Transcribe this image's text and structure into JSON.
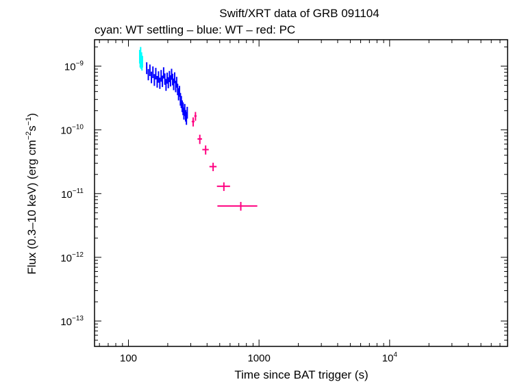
{
  "chart_data": {
    "type": "scatter",
    "title": "Swift/XRT data of GRB 091104",
    "subtitle": "cyan: WT settling – blue: WT – red: PC",
    "xlabel": "Time since BAT trigger (s)",
    "ylabel_parts": [
      "Flux (0.3–10 keV) (erg cm",
      "−2",
      "s",
      "−1",
      ")"
    ],
    "x_scale": "log",
    "y_scale": "log",
    "xlim": [
      55,
      80000
    ],
    "ylim": [
      4e-14,
      2.6e-09
    ],
    "x_ticks": [
      {
        "value": 100,
        "base": "100",
        "exp": ""
      },
      {
        "value": 1000,
        "base": "1000",
        "exp": ""
      },
      {
        "value": 10000,
        "base": "10",
        "exp": "4"
      }
    ],
    "y_ticks": [
      {
        "value": 1e-09,
        "base": "10",
        "exp": "−9"
      },
      {
        "value": 1e-10,
        "base": "10",
        "exp": "−10"
      },
      {
        "value": 1e-11,
        "base": "10",
        "exp": "−11"
      },
      {
        "value": 1e-12,
        "base": "10",
        "exp": "−12"
      },
      {
        "value": 1e-13,
        "base": "10",
        "exp": "−13"
      }
    ],
    "grid": false,
    "series": [
      {
        "color": "#00ffff",
        "points": [
          [
            122,
            1.45e-09,
            1,
            3.5e-10
          ],
          [
            123,
            1.25e-09,
            1,
            3e-10
          ],
          [
            124,
            1.6e-09,
            1,
            4e-10
          ],
          [
            125,
            1.15e-09,
            1,
            2.5e-10
          ],
          [
            126,
            1.35e-09,
            1,
            3e-10
          ],
          [
            127,
            1.1e-09,
            1,
            2.5e-10
          ],
          [
            128,
            1.2e-09,
            1,
            2.5e-10
          ]
        ]
      },
      {
        "color": "#0000ff",
        "points": [
          [
            138,
            9.5e-10,
            1.5,
            2e-10
          ],
          [
            142,
            7.5e-10,
            1.5,
            1.5e-10
          ],
          [
            146,
            8.8e-10,
            1.5,
            1.8e-10
          ],
          [
            150,
            6.8e-10,
            1.5,
            1.4e-10
          ],
          [
            154,
            8.2e-10,
            1.5,
            1.7e-10
          ],
          [
            158,
            6.2e-10,
            1.5,
            1.3e-10
          ],
          [
            162,
            7.8e-10,
            1.5,
            1.6e-10
          ],
          [
            166,
            5.8e-10,
            1.5,
            1.2e-10
          ],
          [
            170,
            6.9e-10,
            1.5,
            1.4e-10
          ],
          [
            174,
            5.5e-10,
            1.5,
            1.1e-10
          ],
          [
            178,
            7.2e-10,
            1.5,
            1.5e-10
          ],
          [
            182,
            5.9e-10,
            1.5,
            1.2e-10
          ],
          [
            186,
            8e-10,
            1.5,
            1.6e-10
          ],
          [
            190,
            6.4e-10,
            1.5,
            1.3e-10
          ],
          [
            194,
            5.2e-10,
            1.5,
            1.1e-10
          ],
          [
            198,
            6.6e-10,
            1.5,
            1.3e-10
          ],
          [
            202,
            5.6e-10,
            1.5,
            1.1e-10
          ],
          [
            206,
            7e-10,
            1.5,
            1.4e-10
          ],
          [
            210,
            6e-10,
            1.5,
            1.2e-10
          ],
          [
            214,
            7.6e-10,
            1.5,
            1.5e-10
          ],
          [
            218,
            6.3e-10,
            1.5,
            1.3e-10
          ],
          [
            222,
            5.3e-10,
            1.5,
            1.1e-10
          ],
          [
            226,
            6.7e-10,
            1.5,
            1.3e-10
          ],
          [
            230,
            4.9e-10,
            1.5,
            1e-10
          ],
          [
            234,
            5.7e-10,
            1.5,
            1.1e-10
          ],
          [
            238,
            4.4e-10,
            1.5,
            9e-11
          ],
          [
            242,
            3.7e-10,
            1.5,
            8e-11
          ],
          [
            246,
            4.1e-10,
            1.5,
            8e-11
          ],
          [
            250,
            3.1e-10,
            1.5,
            7e-11
          ],
          [
            254,
            2.8e-10,
            1.5,
            6e-11
          ],
          [
            258,
            2.4e-10,
            1.5,
            5e-11
          ],
          [
            262,
            2.2e-10,
            1.5,
            5e-11
          ],
          [
            266,
            1.85e-10,
            1.5,
            4e-11
          ],
          [
            270,
            2.1e-10,
            1.5,
            4.5e-11
          ],
          [
            274,
            1.7e-10,
            1.5,
            3.5e-11
          ],
          [
            278,
            1.55e-10,
            1.5,
            3.5e-11
          ],
          [
            282,
            1.9e-10,
            1.5,
            4e-11
          ]
        ]
      },
      {
        "color": "#ff0080",
        "points": [
          [
            313,
            1.35e-10,
            8,
            2.2e-11
          ],
          [
            326,
            1.65e-10,
            7,
            2.6e-11
          ],
          [
            352,
            7.2e-11,
            14,
            1.2e-11
          ],
          [
            390,
            4.9e-11,
            22,
            8e-12
          ],
          [
            445,
            2.65e-11,
            28,
            4e-12
          ],
          [
            538,
            1.3e-11,
            62,
            2e-12
          ],
          [
            725,
            6.4e-12,
            245,
            1e-12
          ]
        ]
      }
    ]
  }
}
